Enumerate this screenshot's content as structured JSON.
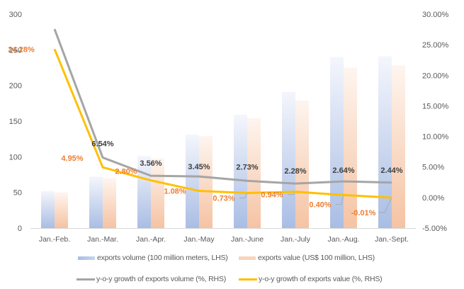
{
  "chart_data": {
    "type": "bar",
    "title": "",
    "xlabel": "",
    "ylabel": "",
    "categories": [
      "Jan.-Feb.",
      "Jan.-Mar.",
      "Jan.-Apr.",
      "Jan.-May",
      "Jan.-June",
      "Jan.-July",
      "Jan.-Aug.",
      "Jan.-Sept."
    ],
    "ylim": [
      0,
      300
    ],
    "y_ticks": [
      "0",
      "50",
      "100",
      "150",
      "200",
      "250",
      "300"
    ],
    "y2lim": [
      -5,
      30
    ],
    "y2_ticks": [
      "-5.00%",
      "0.00%",
      "5.00%",
      "10.00%",
      "15.00%",
      "20.00%",
      "25.00%",
      "30.00%"
    ],
    "grid": false,
    "legend_position": "bottom",
    "series": [
      {
        "name": "exports volume (100 million meters, LHS)",
        "type": "bar",
        "axis": "left",
        "color": "#a9bde4",
        "values": [
          52,
          72,
          101,
          131,
          159,
          191,
          240,
          241
        ]
      },
      {
        "name": "exports value (US$ 100 million, LHS)",
        "type": "bar",
        "axis": "left",
        "color": "#f5c3a3",
        "values": [
          50,
          70,
          98,
          129,
          154,
          179,
          225,
          228
        ]
      },
      {
        "name": "y-o-y growth of exports volume (%, RHS)",
        "type": "line",
        "axis": "right",
        "color": "#a5a5a5",
        "values": [
          27.56,
          6.54,
          3.56,
          3.45,
          2.73,
          2.28,
          2.64,
          2.44
        ],
        "labels": [
          "27.56%",
          "6.54%",
          "3.56%",
          "3.45%",
          "2.73%",
          "2.28%",
          "2.64%",
          "2.44%"
        ]
      },
      {
        "name": "y-o-y growth of exports value (%, RHS)",
        "type": "line",
        "axis": "right",
        "color": "#ffc000",
        "label_color": "#ed7d31",
        "values": [
          24.28,
          4.95,
          2.8,
          1.08,
          0.73,
          0.94,
          0.4,
          -0.01
        ],
        "labels": [
          "24.28%",
          "4.95%",
          "2.80%",
          "1.08%",
          "0.73%",
          "0.94%",
          "0.40%",
          "-0.01%"
        ]
      }
    ]
  },
  "legend": {
    "items": [
      {
        "label": "exports volume (100 million meters, LHS)"
      },
      {
        "label": "exports value (US$ 100 million, LHS)"
      },
      {
        "label": "y-o-y growth of exports volume (%, RHS)"
      },
      {
        "label": "y-o-y growth of exports value (%, RHS)"
      }
    ]
  }
}
